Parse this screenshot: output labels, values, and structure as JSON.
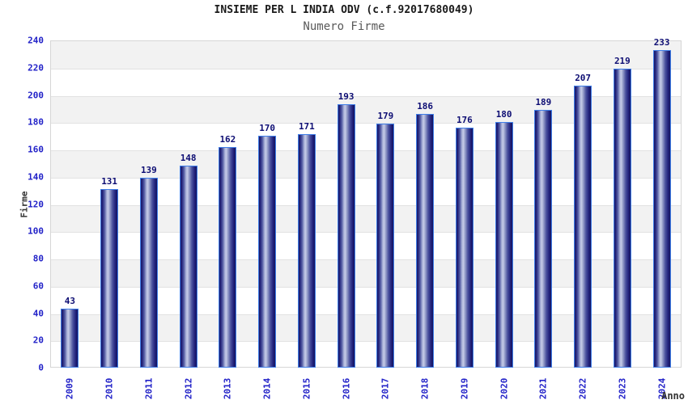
{
  "chart_data": {
    "type": "bar",
    "title": "INSIEME PER L INDIA ODV (c.f.92017680049)",
    "subtitle": "Numero Firme",
    "xlabel": "Anno",
    "ylabel": "Firme",
    "categories": [
      "2009",
      "2010",
      "2011",
      "2012",
      "2013",
      "2014",
      "2015",
      "2016",
      "2017",
      "2018",
      "2019",
      "2020",
      "2021",
      "2022",
      "2023",
      "2024"
    ],
    "values": [
      43,
      131,
      139,
      148,
      162,
      170,
      171,
      193,
      179,
      186,
      176,
      180,
      189,
      207,
      219,
      233
    ],
    "ylim": [
      0,
      240
    ],
    "ytick_step": 20,
    "ytick_labels": [
      "0",
      "20",
      "40",
      "60",
      "80",
      "100",
      "120",
      "140",
      "160",
      "180",
      "200",
      "220",
      "240"
    ],
    "grid": true,
    "band_fill": "alternating",
    "legend": "none",
    "bar_value_labels": true,
    "x_tick_rotation": -90
  },
  "colors": {
    "title": "#1a1a1a",
    "subtitle": "#595959",
    "axis_tick": "#2222c8",
    "bar_value_label": "#0d0d73",
    "axis_title": "#333333",
    "bar_border": "#3f7ee8",
    "bar_dark": "#191968",
    "bar_light": "#c6cce8",
    "band_gray": "#f2f2f2",
    "gridline": "#e2e2e2",
    "plot_border": "#d6d6d6",
    "background": "#ffffff"
  }
}
